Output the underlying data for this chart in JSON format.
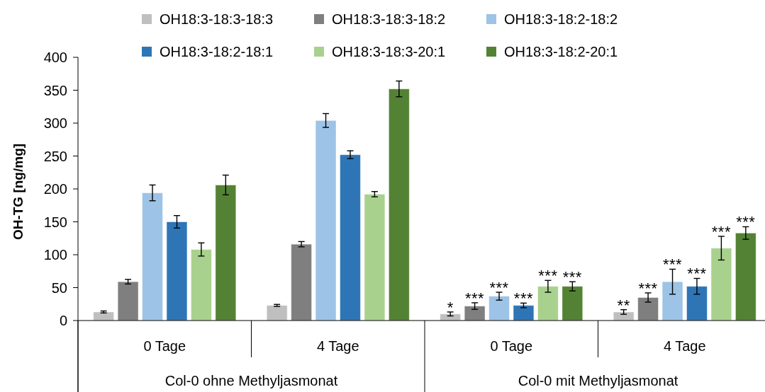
{
  "chart_data": {
    "type": "bar",
    "ylabel": "OH-TG [ng/mg]",
    "categories": [
      "0 Tage",
      "4 Tage",
      "0 Tage",
      "4 Tage"
    ],
    "annotations": [
      "Col-0 ohne Methyljasmonat",
      "Col-0 mit Methyljasmonat"
    ],
    "ylim": [
      0,
      400
    ],
    "yticks": [
      0,
      50,
      100,
      150,
      200,
      250,
      300,
      350,
      400
    ],
    "legend": "top",
    "series": [
      {
        "name": "OH18:3-18:3-18:3",
        "color": "#bfbfbf",
        "values": [
          13,
          23,
          10,
          13
        ],
        "errors": [
          1.5,
          1.5,
          3,
          3.5
        ],
        "value_labels": [
          null,
          null,
          "*",
          "**"
        ]
      },
      {
        "name": "OH18:3-18:3-18:2",
        "color": "#7f7f7f",
        "values": [
          59,
          116,
          22,
          35
        ],
        "errors": [
          3.5,
          4,
          5,
          7
        ],
        "value_labels": [
          null,
          null,
          "***",
          "***"
        ]
      },
      {
        "name": "OH18:3-18:2-18:2",
        "color": "#9dc3e6",
        "values": [
          194,
          304,
          37,
          59
        ],
        "errors": [
          12,
          10.5,
          6,
          19
        ],
        "value_labels": [
          null,
          null,
          "***",
          "***"
        ]
      },
      {
        "name": "OH18:3-18:2-18:1",
        "color": "#2e75b6",
        "values": [
          150,
          252,
          23,
          52
        ],
        "errors": [
          9.5,
          6,
          3.5,
          12
        ],
        "value_labels": [
          null,
          null,
          "***",
          "***"
        ]
      },
      {
        "name": "OH18:3-18:3-20:1",
        "color": "#a9d18e",
        "values": [
          108,
          192,
          52,
          110
        ],
        "errors": [
          10,
          4,
          9,
          18
        ],
        "value_labels": [
          null,
          null,
          "***",
          "***"
        ]
      },
      {
        "name": "OH18:3-18:2-20:1",
        "color": "#548235",
        "values": [
          206,
          352,
          52,
          133
        ],
        "errors": [
          15,
          12,
          7,
          9.5
        ],
        "value_labels": [
          null,
          null,
          "***",
          "***"
        ]
      }
    ]
  }
}
